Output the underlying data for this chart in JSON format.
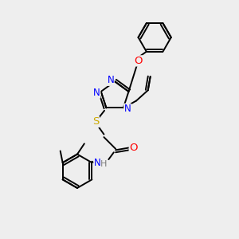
{
  "bg_color": "#eeeeee",
  "atom_colors": {
    "N": "#0000ff",
    "O": "#ff0000",
    "S": "#ccaa00",
    "H": "#777777"
  },
  "bond_color": "#000000",
  "bond_width": 1.4,
  "font_size": 8.5,
  "figsize": [
    3.0,
    3.0
  ],
  "dpi": 100
}
